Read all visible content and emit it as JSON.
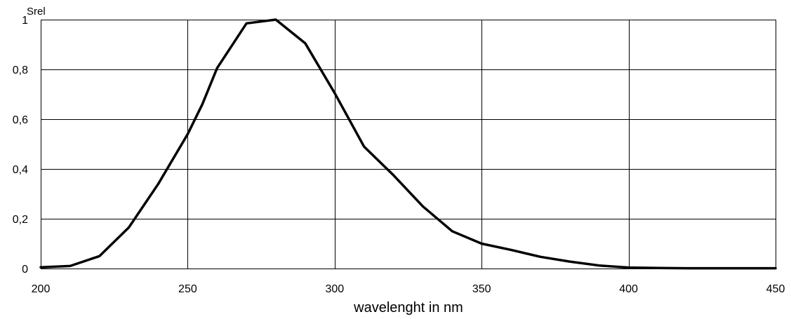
{
  "chart_data": {
    "type": "line",
    "ylabel": "Srel",
    "xlabel": "wavelenght in nm",
    "xlim": [
      200,
      450
    ],
    "ylim": [
      0,
      1
    ],
    "x_ticks": [
      200,
      250,
      300,
      350,
      400,
      450
    ],
    "x_tick_labels": [
      "200",
      "250",
      "300",
      "350",
      "400",
      "450"
    ],
    "y_ticks": [
      0,
      0.2,
      0.4,
      0.6,
      0.8,
      1
    ],
    "y_tick_labels": [
      "0",
      "0,2",
      "0,4",
      "0,6",
      "0,8",
      "1"
    ],
    "grid": true,
    "series": [
      {
        "color": "#000000",
        "x": [
          200,
          210,
          220,
          230,
          240,
          250,
          255,
          260,
          270,
          280,
          290,
          300,
          310,
          320,
          330,
          340,
          350,
          360,
          370,
          380,
          390,
          400,
          410,
          420,
          430,
          440,
          450
        ],
        "y": [
          0.005,
          0.01,
          0.05,
          0.165,
          0.34,
          0.54,
          0.66,
          0.805,
          0.985,
          1.0,
          0.905,
          0.705,
          0.49,
          0.375,
          0.25,
          0.15,
          0.1,
          0.075,
          0.047,
          0.028,
          0.012,
          0.004,
          0.002,
          0.001,
          0.001,
          0.001,
          0.001
        ]
      }
    ]
  }
}
